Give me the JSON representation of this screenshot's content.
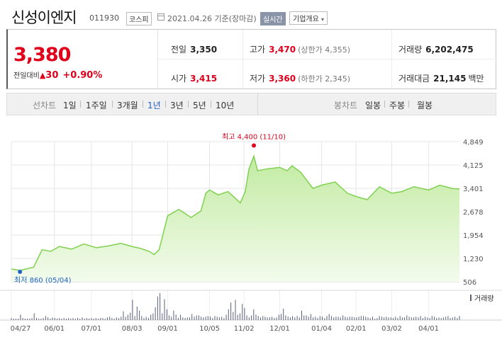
{
  "header": {
    "company": "신성이엔지",
    "code": "011930",
    "market": "코스피",
    "date": "2021.04.26",
    "date_suffix": "기준(장마감)",
    "live_badge": "실시간",
    "info_button": "기업개요"
  },
  "summary": {
    "price": "3,380",
    "change_label": "전일대비",
    "change_amount": "30",
    "change_percent": "+0.90%",
    "prev_close_label": "전일",
    "prev_close": "3,350",
    "open_label": "시가",
    "open": "3,415",
    "high_label": "고가",
    "high": "3,470",
    "upper_limit": "(상한가 4,355)",
    "low_label": "저가",
    "low": "3,360",
    "lower_limit": "(하한가 2,345)",
    "volume_label": "거래량",
    "volume": "6,202,475",
    "value_label": "거래대금",
    "value": "21,145",
    "value_unit": "백만"
  },
  "periods": {
    "line_label": "선차트",
    "line_options": [
      "1일",
      "1주일",
      "3개월",
      "1년",
      "3년",
      "5년",
      "10년"
    ],
    "selected": "1년",
    "candle_label": "봉차트",
    "candle_options": [
      "일봉",
      "주봉",
      "월봉"
    ]
  },
  "colors": {
    "up": "#e0001b",
    "line": "#7fd14f",
    "selected": "#1e5ec9",
    "low_marker": "#1f62c8",
    "volume": "#5a5f7a"
  },
  "chart_data": {
    "type": "area",
    "y_ticks": [
      "4,849",
      "4,125",
      "3,401",
      "2,678",
      "1,954",
      "1,230",
      "506"
    ],
    "ylim": [
      506,
      4849
    ],
    "x_ticks": [
      "04/27",
      "06/01",
      "07/01",
      "08/03",
      "09/01",
      "10/05",
      "11/02",
      "12/01",
      "01/04",
      "02/01",
      "03/02",
      "04/01"
    ],
    "high_annotation": "최고 4,400 (11/10)",
    "low_annotation": "최저 860 (05/04)",
    "volume_legend": "거래량",
    "series": [
      {
        "x": [
          "2020-04-27",
          "2020-05-04",
          "2020-05-15",
          "2020-05-22",
          "2020-05-29",
          "2020-06-05",
          "2020-06-15",
          "2020-06-25",
          "2020-07-05",
          "2020-07-15",
          "2020-07-25",
          "2020-08-03",
          "2020-08-10",
          "2020-08-17",
          "2020-08-21",
          "2020-08-25",
          "2020-09-01",
          "2020-09-10",
          "2020-09-20",
          "2020-09-28",
          "2020-10-02",
          "2020-10-05",
          "2020-10-12",
          "2020-10-20",
          "2020-10-30",
          "2020-11-03",
          "2020-11-06",
          "2020-11-10",
          "2020-11-13",
          "2020-11-20",
          "2020-12-01",
          "2020-12-07",
          "2020-12-11",
          "2020-12-18",
          "2020-12-28",
          "2021-01-04",
          "2021-01-15",
          "2021-01-25",
          "2021-02-01",
          "2021-02-10",
          "2021-02-20",
          "2021-03-02",
          "2021-03-10",
          "2021-03-20",
          "2021-04-01",
          "2021-04-10",
          "2021-04-20",
          "2021-04-26"
        ],
        "values": [
          900,
          860,
          960,
          1500,
          1450,
          1600,
          1520,
          1680,
          1560,
          1620,
          1700,
          1600,
          1540,
          1450,
          1350,
          1500,
          2550,
          2750,
          2500,
          2700,
          3250,
          3350,
          3200,
          3300,
          2950,
          3300,
          4000,
          4400,
          3950,
          4000,
          4050,
          3950,
          4100,
          3900,
          3400,
          3500,
          3600,
          3250,
          3150,
          3050,
          3450,
          3250,
          3300,
          3450,
          3350,
          3500,
          3400,
          3380
        ]
      }
    ],
    "volume": [
      3,
      2,
      2,
      2,
      8,
      3,
      2,
      2,
      2,
      3,
      10,
      3,
      2,
      2,
      3,
      6,
      4,
      2,
      4,
      3,
      2,
      3,
      2,
      3,
      2,
      3,
      2,
      3,
      2,
      3,
      2,
      4,
      2,
      3,
      2,
      3,
      2,
      3,
      2,
      3,
      3,
      2,
      4,
      5,
      3,
      2,
      4,
      3,
      5,
      13,
      5,
      8,
      11,
      30,
      6,
      20,
      14,
      6,
      3,
      5,
      3,
      8,
      10,
      19,
      35,
      40,
      10,
      31,
      16,
      7,
      5,
      14,
      8,
      3,
      8,
      4,
      3,
      4,
      4,
      9,
      5,
      7,
      7,
      5,
      4,
      5,
      6,
      5,
      3,
      6,
      5,
      4,
      5,
      3,
      8,
      16,
      26,
      12,
      30,
      8,
      10,
      24,
      18,
      7,
      4,
      7,
      16,
      8,
      6,
      4,
      6,
      5,
      4,
      4,
      5,
      3,
      4,
      8,
      9,
      17,
      7,
      5,
      4,
      6,
      4,
      6,
      4,
      14,
      7,
      7,
      5,
      9,
      4,
      5,
      3,
      6,
      5,
      3,
      6,
      9,
      6,
      4,
      5,
      5,
      4,
      7,
      5,
      4,
      5,
      5,
      4,
      4,
      5,
      6,
      6,
      5,
      4,
      3,
      5,
      2,
      3,
      6,
      5,
      4,
      5,
      4,
      4,
      3,
      5,
      3,
      6,
      4,
      4,
      7,
      5,
      4,
      4,
      5,
      4,
      6,
      3,
      5,
      4,
      3,
      6,
      5,
      3,
      4,
      3,
      4,
      5,
      6,
      3,
      4,
      5,
      3,
      6
    ]
  }
}
